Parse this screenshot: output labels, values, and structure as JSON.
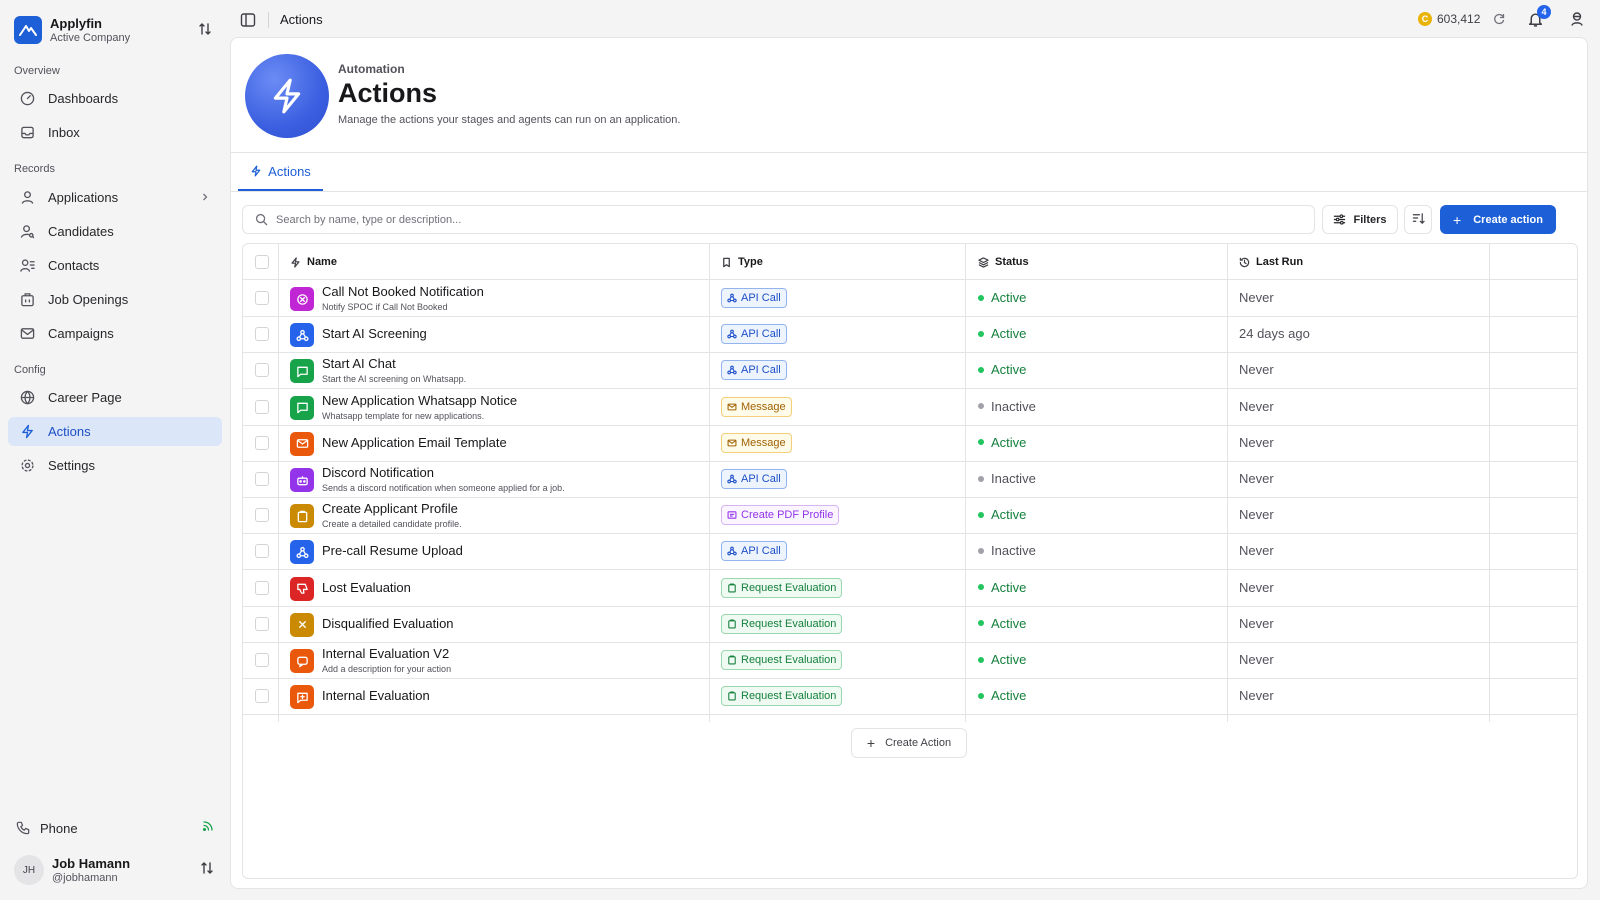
{
  "brand": {
    "name": "Applyfin",
    "subtitle": "Active Company"
  },
  "sidebar": {
    "sections": [
      {
        "label": "Overview",
        "items": [
          {
            "label": "Dashboards",
            "icon": "gauge-icon"
          },
          {
            "label": "Inbox",
            "icon": "inbox-icon"
          }
        ]
      },
      {
        "label": "Records",
        "items": [
          {
            "label": "Applications",
            "icon": "user-icon"
          },
          {
            "label": "Candidates",
            "icon": "user-search-icon"
          },
          {
            "label": "Contacts",
            "icon": "contacts-icon"
          },
          {
            "label": "Job Openings",
            "icon": "building-icon"
          },
          {
            "label": "Campaigns",
            "icon": "mail-icon"
          }
        ]
      },
      {
        "label": "Config",
        "items": [
          {
            "label": "Career Page",
            "icon": "globe-icon"
          },
          {
            "label": "Actions",
            "icon": "bolt-icon",
            "active": true
          },
          {
            "label": "Settings",
            "icon": "gear-icon"
          }
        ]
      }
    ],
    "phone_label": "Phone",
    "user": {
      "initials": "JH",
      "name": "Job Hamann",
      "handle": "@jobhamann"
    }
  },
  "topbar": {
    "title": "Actions",
    "credits": "603,412",
    "coin_letter": "C",
    "notifications": "4"
  },
  "hero": {
    "kicker": "Automation",
    "title": "Actions",
    "description": "Manage the actions your stages and agents can run on an application."
  },
  "tabs": [
    {
      "label": "Actions",
      "active": true
    }
  ],
  "toolbar": {
    "search_placeholder": "Search by name, type or description...",
    "filters_label": "Filters",
    "create_label": "Create action",
    "create_plus": "+"
  },
  "table": {
    "columns": {
      "name": "Name",
      "type": "Type",
      "status": "Status",
      "last_run": "Last Run"
    },
    "rows": [
      {
        "name": "Call Not Booked Notification",
        "description": "Notify SPOC if Call Not Booked",
        "type": "API Call",
        "type_kind": "api",
        "status": "Active",
        "last_run": "Never",
        "icon_color": "#c026d3",
        "icon": "x-circle-icon"
      },
      {
        "name": "Start AI Screening",
        "description": "",
        "type": "API Call",
        "type_kind": "api",
        "status": "Active",
        "last_run": "24 days ago",
        "icon_color": "#2563eb",
        "icon": "webhook-icon"
      },
      {
        "name": "Start AI Chat",
        "description": "Start the AI screening on Whatsapp.",
        "type": "API Call",
        "type_kind": "api",
        "status": "Active",
        "last_run": "Never",
        "icon_color": "#16a34a",
        "icon": "chat-icon"
      },
      {
        "name": "New Application Whatsapp Notice",
        "description": "Whatsapp template for new applications.",
        "type": "Message",
        "type_kind": "msg",
        "status": "Inactive",
        "last_run": "Never",
        "icon_color": "#16a34a",
        "icon": "chat-icon"
      },
      {
        "name": "New Application Email Template",
        "description": "",
        "type": "Message",
        "type_kind": "msg",
        "status": "Active",
        "last_run": "Never",
        "icon_color": "#ea580c",
        "icon": "mail-icon"
      },
      {
        "name": "Discord Notification",
        "description": "Sends a discord notification when someone applied for a job.",
        "type": "API Call",
        "type_kind": "api",
        "status": "Inactive",
        "last_run": "Never",
        "icon_color": "#9333ea",
        "icon": "bot-icon"
      },
      {
        "name": "Create Applicant Profile",
        "description": "Create a detailed candidate profile.",
        "type": "Create PDF Profile",
        "type_kind": "pdf",
        "status": "Active",
        "last_run": "Never",
        "icon_color": "#ca8a04",
        "icon": "clipboard-icon"
      },
      {
        "name": "Pre-call Resume Upload",
        "description": "",
        "type": "API Call",
        "type_kind": "api",
        "status": "Inactive",
        "last_run": "Never",
        "icon_color": "#2563eb",
        "icon": "webhook-icon"
      },
      {
        "name": "Lost Evaluation",
        "description": "",
        "type": "Request Evaluation",
        "type_kind": "eval",
        "status": "Active",
        "last_run": "Never",
        "icon_color": "#dc2626",
        "icon": "thumbs-down-icon"
      },
      {
        "name": "Disqualified Evaluation",
        "description": "",
        "type": "Request Evaluation",
        "type_kind": "eval",
        "status": "Active",
        "last_run": "Never",
        "icon_color": "#ca8a04",
        "icon": "x-icon"
      },
      {
        "name": "Internal Evaluation V2",
        "description": "Add a description for your action",
        "type": "Request Evaluation",
        "type_kind": "eval",
        "status": "Active",
        "last_run": "Never",
        "icon_color": "#ea580c",
        "icon": "message-square-icon"
      },
      {
        "name": "Internal Evaluation",
        "description": "",
        "type": "Request Evaluation",
        "type_kind": "eval",
        "status": "Active",
        "last_run": "Never",
        "icon_color": "#ea580c",
        "icon": "message-plus-icon"
      }
    ],
    "create_action_label": "Create Action",
    "create_action_plus": "+"
  }
}
